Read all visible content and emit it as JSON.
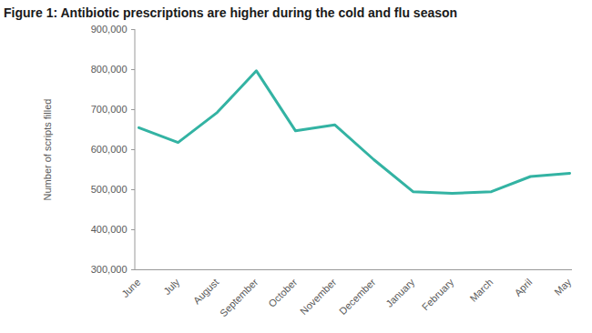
{
  "chart_data": {
    "type": "line",
    "title": "Figure 1: Antibiotic prescriptions are higher during the cold and flu season",
    "y_label": "Number of scripts filled",
    "categories": [
      "June",
      "July",
      "August",
      "September",
      "October",
      "November",
      "December",
      "January",
      "February",
      "March",
      "April",
      "May"
    ],
    "values": [
      655000,
      618000,
      693000,
      797000,
      647000,
      662000,
      575000,
      495000,
      491000,
      495000,
      533000,
      541000
    ],
    "color": "#33b3a3",
    "ylim": [
      300000,
      900000
    ],
    "yticks": [
      {
        "value": 300000,
        "label": "300,000"
      },
      {
        "value": 400000,
        "label": "400,000"
      },
      {
        "value": 500000,
        "label": "500,000"
      },
      {
        "value": 600000,
        "label": "600,000"
      },
      {
        "value": 700000,
        "label": "700,000"
      },
      {
        "value": 800000,
        "label": "800,000"
      },
      {
        "value": 900000,
        "label": "900,000"
      }
    ],
    "grid": false
  }
}
